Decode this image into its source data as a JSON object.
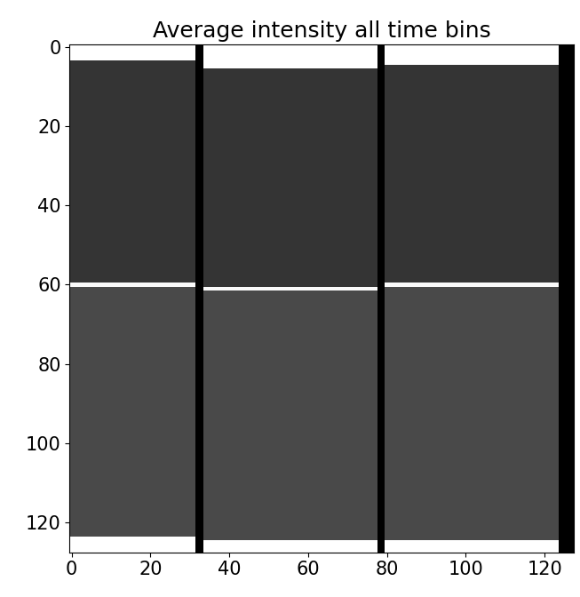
{
  "chart_data": {
    "type": "heatmap",
    "title": "Average intensity all time bins",
    "x_edges": [
      -0.5,
      31.5,
      33.5,
      77.5,
      79.5,
      123.5,
      127.5
    ],
    "y_edges": [
      -0.5,
      3.5,
      4.5,
      5.5,
      58.5,
      59.5,
      60.5,
      61.5,
      123.5,
      124.5,
      127.5
    ],
    "cells": [
      [
        0.97,
        0.0,
        0.97,
        0.0,
        0.97,
        0.0
      ],
      [
        0.2,
        0.0,
        0.97,
        0.0,
        0.97,
        0.0
      ],
      [
        0.2,
        0.0,
        0.97,
        0.0,
        0.2,
        0.0
      ],
      [
        0.2,
        0.0,
        0.2,
        0.0,
        0.2,
        0.0
      ],
      [
        0.2,
        0.0,
        0.2,
        0.0,
        0.2,
        0.0
      ],
      [
        0.95,
        0.0,
        0.2,
        0.0,
        0.95,
        0.0
      ],
      [
        0.28,
        0.0,
        0.95,
        0.0,
        0.28,
        0.0
      ],
      [
        0.28,
        0.0,
        0.28,
        0.0,
        0.28,
        0.0
      ],
      [
        0.97,
        0.0,
        0.28,
        0.0,
        0.28,
        0.0
      ],
      [
        0.97,
        0.0,
        0.97,
        0.0,
        0.97,
        0.0
      ]
    ],
    "xlim": [
      -0.5,
      127.5
    ],
    "ylim": [
      127.5,
      -0.5
    ],
    "xticks": [
      0,
      20,
      40,
      60,
      80,
      100,
      120
    ],
    "yticks": [
      0,
      20,
      40,
      60,
      80,
      100,
      120
    ]
  }
}
